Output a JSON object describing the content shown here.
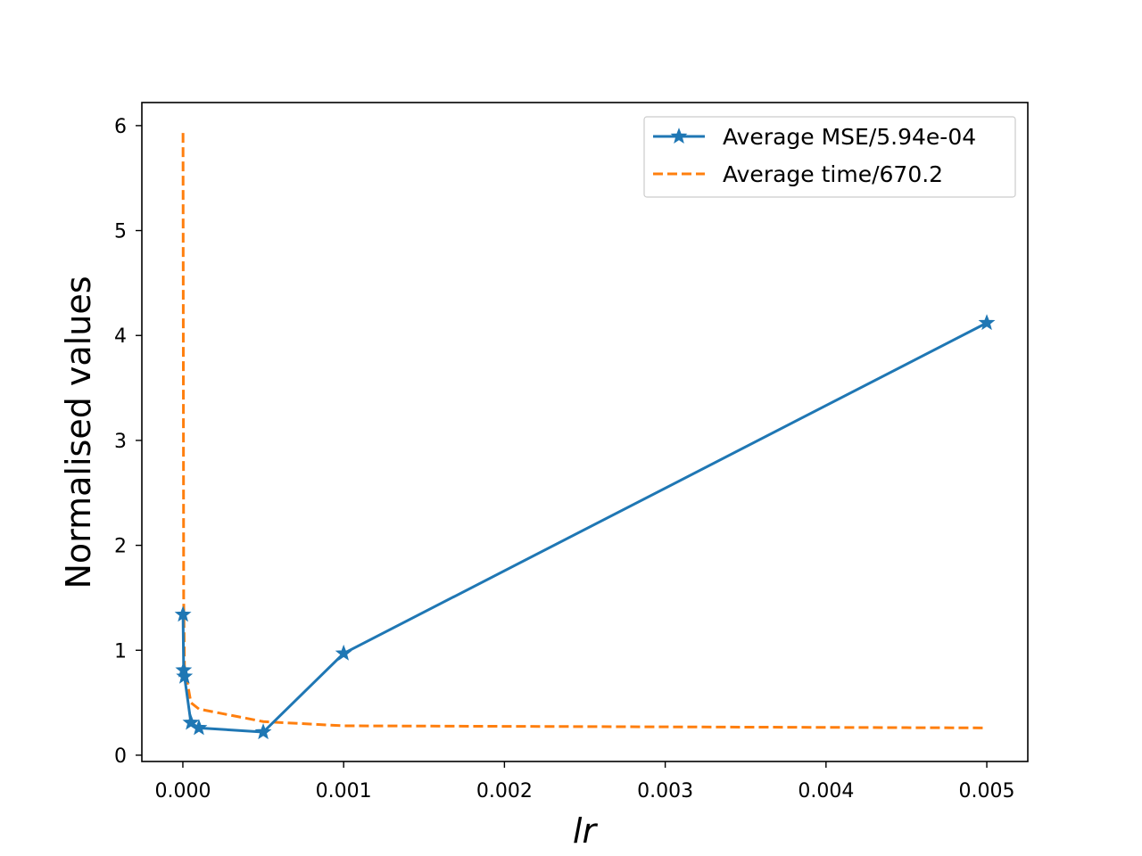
{
  "chart_data": {
    "type": "line",
    "xlabel": "lr",
    "ylabel": "Normalised values",
    "xlim": [
      -0.000255,
      0.005255
    ],
    "ylim": [
      -0.06,
      6.22
    ],
    "xticks": [
      0.0,
      0.001,
      0.002,
      0.003,
      0.004,
      0.005
    ],
    "xtick_labels": [
      "0.000",
      "0.001",
      "0.002",
      "0.003",
      "0.004",
      "0.005"
    ],
    "yticks": [
      0,
      1,
      2,
      3,
      4,
      5,
      6
    ],
    "ytick_labels": [
      "0",
      "1",
      "2",
      "3",
      "4",
      "5",
      "6"
    ],
    "grid": false,
    "legend_position": "top-right",
    "series": [
      {
        "name": "Average MSE/5.94e-04",
        "color": "#1f77b4",
        "linestyle": "solid",
        "marker": "star",
        "x": [
          1e-06,
          5e-06,
          1e-05,
          5e-05,
          0.0001,
          0.0005,
          0.001,
          0.005
        ],
        "y": [
          1.34,
          0.81,
          0.75,
          0.31,
          0.26,
          0.22,
          0.97,
          4.12
        ]
      },
      {
        "name": "Average time/670.2",
        "color": "#ff7f0e",
        "linestyle": "dashed",
        "marker": "none",
        "x": [
          1e-06,
          5e-06,
          1e-05,
          5e-05,
          0.0001,
          0.0005,
          0.001,
          0.005
        ],
        "y": [
          5.93,
          1.5,
          0.85,
          0.5,
          0.44,
          0.32,
          0.28,
          0.26
        ]
      }
    ]
  }
}
